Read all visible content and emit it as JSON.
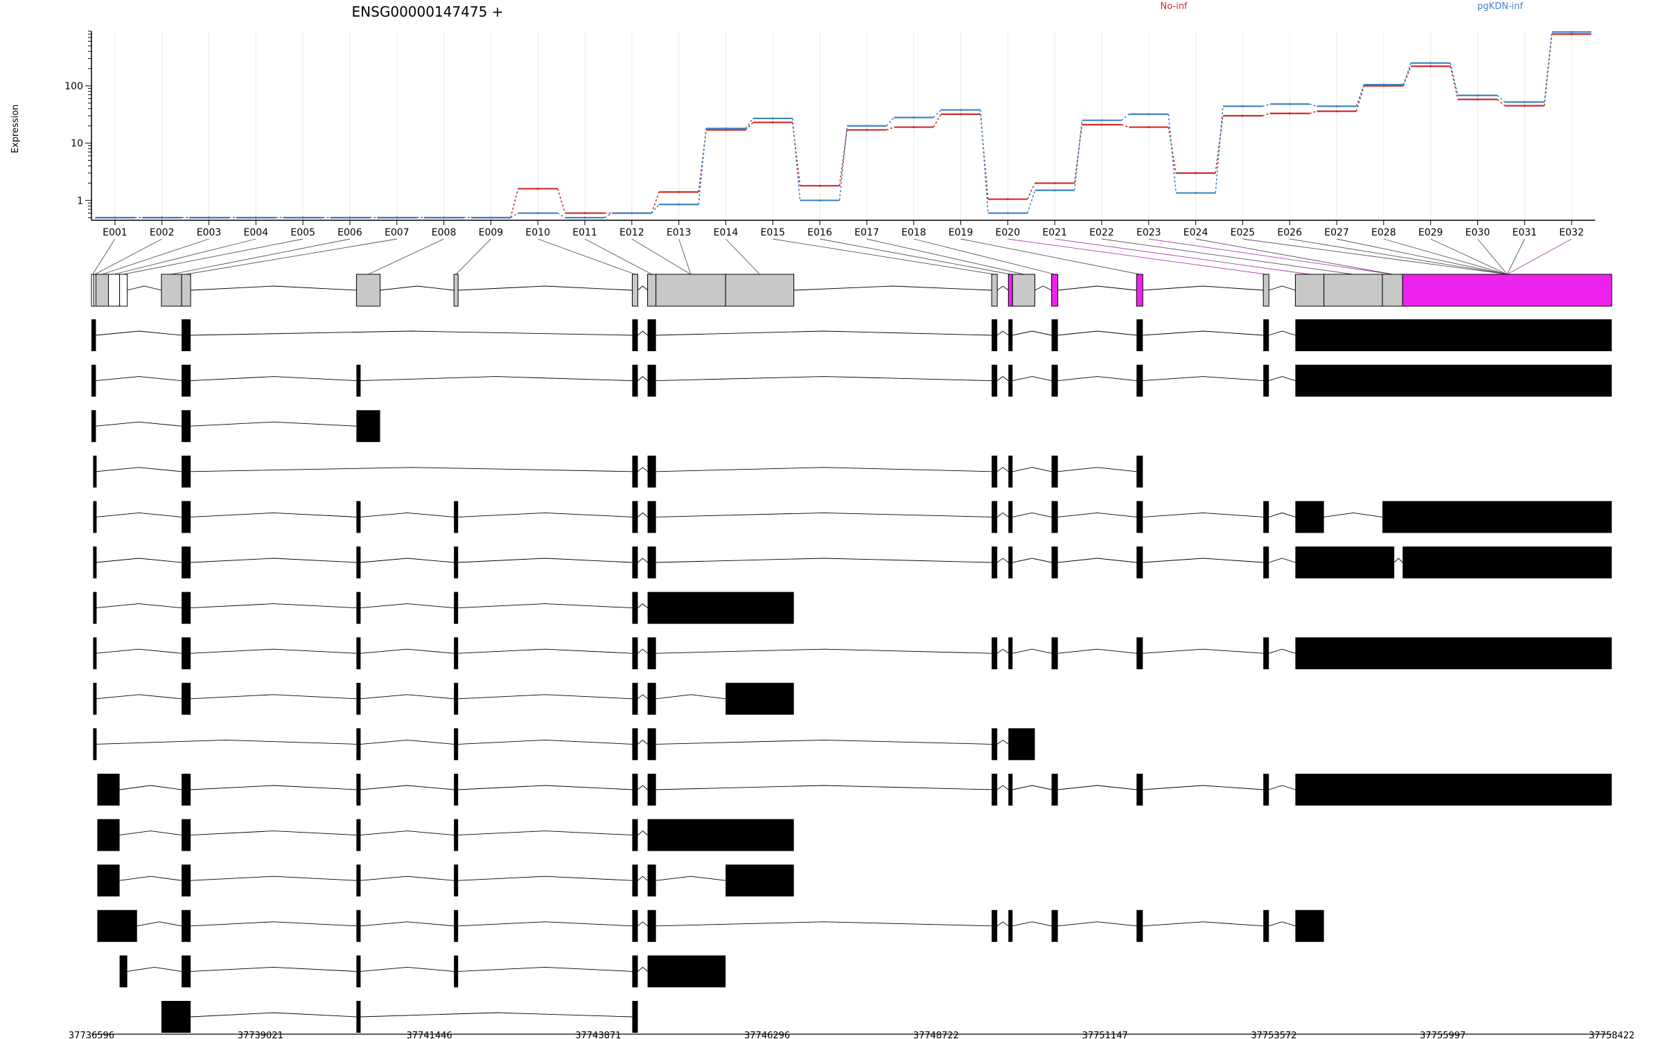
{
  "chart_data": {
    "type": "line",
    "title": "ENSG00000147475 +",
    "xlabel": "",
    "ylabel": "Expression",
    "y_scale": "log",
    "y_ticks": [
      1,
      10,
      100
    ],
    "ylim": [
      0.45,
      900
    ],
    "grid": "vertical",
    "legend_placement": "top-right",
    "colors": {
      "No-inf": "#cc2b2b",
      "pgKDN-inf": "#3f84c4",
      "highlight": "#ee22ee",
      "exon": "#c8c8c8",
      "model": "#000000"
    },
    "categories": [
      "E001",
      "E002",
      "E003",
      "E004",
      "E005",
      "E006",
      "E007",
      "E008",
      "E009",
      "E010",
      "E011",
      "E012",
      "E013",
      "E014",
      "E015",
      "E016",
      "E017",
      "E018",
      "E019",
      "E020",
      "E021",
      "E022",
      "E023",
      "E024",
      "E025",
      "E026",
      "E027",
      "E028",
      "E029",
      "E030",
      "E031",
      "E032"
    ],
    "series": [
      {
        "name": "No-inf",
        "values": [
          0.5,
          0.5,
          0.5,
          0.5,
          0.5,
          0.5,
          0.5,
          0.5,
          0.5,
          1.6,
          0.6,
          0.6,
          1.4,
          17,
          23,
          1.8,
          17,
          19,
          32,
          1.05,
          2.0,
          21,
          19,
          3.0,
          30,
          33,
          36,
          100,
          220,
          58,
          45,
          800
        ]
      },
      {
        "name": "pgKDN-inf",
        "values": [
          0.5,
          0.5,
          0.5,
          0.5,
          0.5,
          0.5,
          0.5,
          0.5,
          0.5,
          0.6,
          0.5,
          0.6,
          0.85,
          18,
          27,
          1.0,
          20,
          28,
          38,
          0.6,
          1.5,
          25,
          32,
          1.35,
          44,
          48,
          44,
          105,
          250,
          68,
          52,
          870
        ]
      }
    ],
    "highlighted_exons": [
      "E020",
      "E021",
      "E023",
      "E032"
    ],
    "genomic_axis": {
      "range": [
        37736596,
        37758422
      ],
      "tick_labels": [
        "37736596",
        "37739021",
        "37741446",
        "37743871",
        "37746296",
        "37748722",
        "37751147",
        "37753572",
        "37755997",
        "37758422"
      ]
    }
  }
}
